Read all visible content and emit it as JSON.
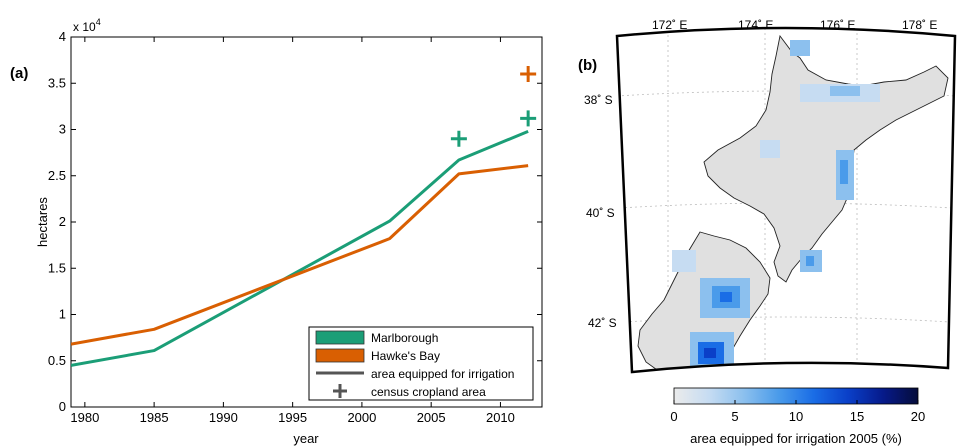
{
  "panel_a": {
    "label": "(a)",
    "exponent_text": "x 10",
    "exponent_power": "4",
    "chart_data": {
      "type": "line",
      "xlabel": "year",
      "ylabel": "hectares",
      "xlim": [
        1979,
        2013
      ],
      "ylim": [
        0,
        40000
      ],
      "xticks": [
        1980,
        1985,
        1990,
        1995,
        2000,
        2005,
        2010
      ],
      "yticks": [
        0,
        5000,
        10000,
        15000,
        20000,
        25000,
        30000,
        35000,
        40000
      ],
      "xtick_labels": [
        "1980",
        "1985",
        "1990",
        "1995",
        "2000",
        "2005",
        "2010"
      ],
      "ytick_labels": [
        "0",
        "0.5",
        "1",
        "1.5",
        "2",
        "2.5",
        "3",
        "3.5",
        "4"
      ],
      "series": [
        {
          "name": "Marlborough",
          "color": "#1b9e77",
          "x": [
            1979,
            1985,
            2002,
            2007,
            2012
          ],
          "y": [
            4500,
            6100,
            20100,
            26700,
            29800
          ],
          "census": {
            "x": 2012,
            "y": 31200,
            "x2": 2007,
            "y2": 29000
          }
        },
        {
          "name": "Hawke's Bay",
          "color": "#d95f02",
          "x": [
            1979,
            1985,
            2002,
            2007,
            2012
          ],
          "y": [
            6800,
            8400,
            18200,
            25200,
            26100
          ],
          "census": {
            "x": 2012,
            "y": 36000
          }
        }
      ],
      "legend": {
        "placement": "bottom-right",
        "entries": [
          {
            "label": "Marlborough",
            "kind": "swatch",
            "color": "#1b9e77"
          },
          {
            "label": "Hawke's Bay",
            "kind": "swatch",
            "color": "#d95f02"
          },
          {
            "label": "area equipped for irrigation",
            "kind": "line",
            "color": "#555555"
          },
          {
            "label": "census cropland area",
            "kind": "plus",
            "color": "#555555"
          }
        ]
      }
    }
  },
  "panel_b": {
    "label": "(b)",
    "lon_labels": [
      "172˚ E",
      "174˚ E",
      "176˚ E",
      "178˚ E"
    ],
    "lat_labels": [
      "38˚ S",
      "40˚ S",
      "42˚ S"
    ],
    "land_color": "#e0e0e0",
    "colorbar": {
      "ticks": [
        "0",
        "5",
        "10",
        "15",
        "20"
      ],
      "label": "area equipped for irrigation 2005 (%)",
      "colors": [
        "#ebebeb",
        "#c6dcf2",
        "#8cc0ee",
        "#4a9bea",
        "#1a6de6",
        "#0a3fc8",
        "#061a8a",
        "#050c3a"
      ]
    }
  }
}
